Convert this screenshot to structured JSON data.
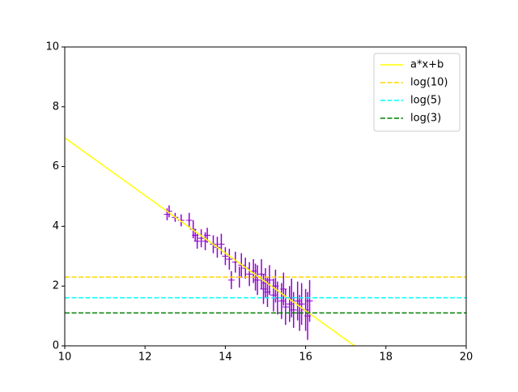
{
  "chart_data": {
    "type": "errorbar",
    "xlim": [
      10,
      20
    ],
    "ylim": [
      0,
      10
    ],
    "xticks": [
      10,
      12,
      14,
      16,
      18,
      20
    ],
    "yticks": [
      0,
      2,
      4,
      6,
      8,
      10
    ],
    "legend": "upper right",
    "errorbars": {
      "color": "#9400d3",
      "x": [
        12.55,
        12.6,
        12.75,
        12.9,
        13.1,
        13.2,
        13.25,
        13.3,
        13.4,
        13.5,
        13.55,
        13.7,
        13.8,
        13.9,
        14.0,
        14.1,
        14.15,
        14.25,
        14.35,
        14.4,
        14.5,
        14.6,
        14.7,
        14.75,
        14.8,
        14.9,
        14.95,
        15.0,
        15.05,
        15.1,
        15.2,
        15.25,
        15.3,
        15.4,
        15.45,
        15.5,
        15.6,
        15.65,
        15.7,
        15.8,
        15.85,
        15.9,
        16.0,
        16.05,
        16.1
      ],
      "values": [
        4.4,
        4.5,
        4.3,
        4.2,
        4.2,
        3.9,
        3.7,
        3.5,
        3.6,
        3.5,
        3.7,
        3.4,
        3.3,
        3.4,
        3.0,
        2.9,
        2.2,
        2.8,
        2.3,
        2.7,
        2.6,
        2.4,
        2.5,
        2.3,
        2.2,
        2.4,
        1.9,
        2.1,
        1.8,
        2.2,
        1.7,
        2.0,
        1.6,
        1.5,
        1.9,
        1.3,
        1.4,
        1.6,
        1.2,
        1.5,
        1.1,
        1.4,
        1.2,
        1.0,
        1.5
      ],
      "errors": [
        0.2,
        0.2,
        0.15,
        0.2,
        0.25,
        0.3,
        0.2,
        0.25,
        0.3,
        0.3,
        0.25,
        0.3,
        0.35,
        0.35,
        0.3,
        0.35,
        0.3,
        0.35,
        0.35,
        0.4,
        0.35,
        0.4,
        0.4,
        0.45,
        0.5,
        0.5,
        0.5,
        0.5,
        0.5,
        0.5,
        0.55,
        0.55,
        0.55,
        0.6,
        0.55,
        0.6,
        0.6,
        0.65,
        0.6,
        0.65,
        0.6,
        0.7,
        0.7,
        0.8,
        0.7
      ]
    },
    "series": [
      {
        "name": "a*x+b",
        "color": "#ffff00",
        "linestyle": "solid",
        "x": [
          10,
          17.22
        ],
        "values": [
          6.96,
          0
        ]
      },
      {
        "name": "log(10)",
        "color": "#ffd700",
        "linestyle": "dashed",
        "x": [
          10,
          20
        ],
        "values": [
          2.3,
          2.3
        ]
      },
      {
        "name": "log(5)",
        "color": "#00ffff",
        "linestyle": "dashed",
        "x": [
          10,
          20
        ],
        "values": [
          1.61,
          1.61
        ]
      },
      {
        "name": "log(3)",
        "color": "#008000",
        "linestyle": "dashed",
        "x": [
          10,
          20
        ],
        "values": [
          1.1,
          1.1
        ]
      }
    ]
  }
}
